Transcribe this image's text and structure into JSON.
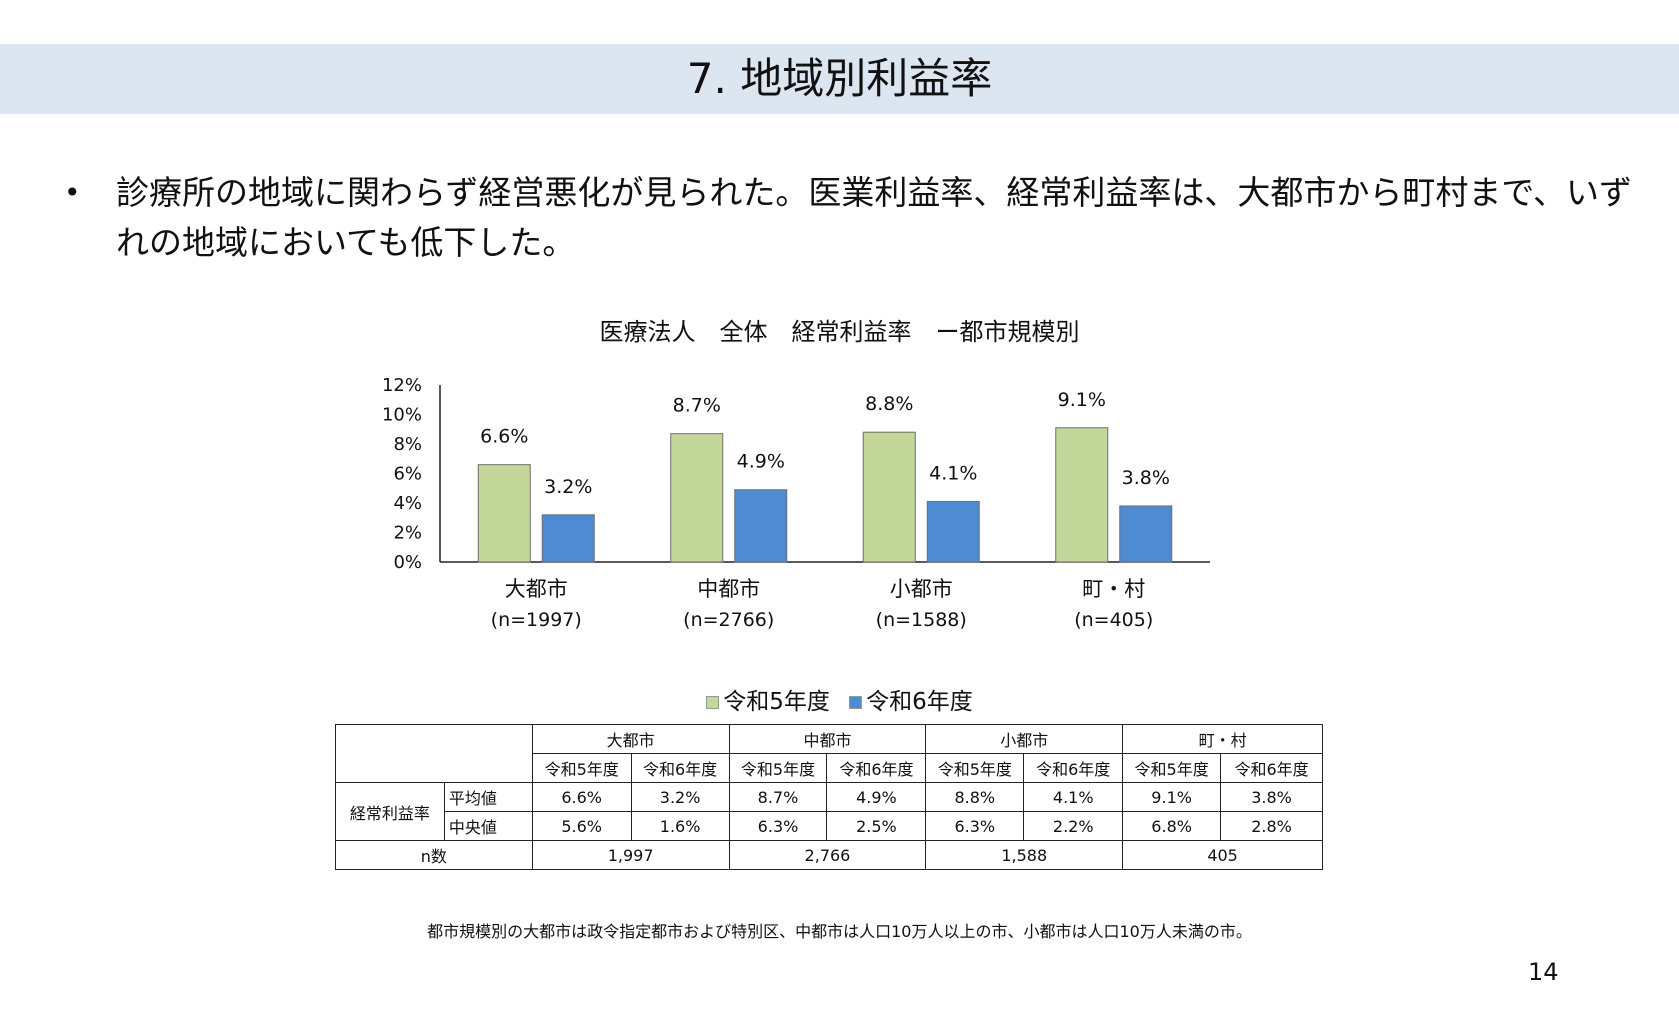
{
  "slide": {
    "title": "7. 地域別利益率",
    "bullet": "診療所の地域に関わらず経営悪化が見られた。医業利益率、経常利益率は、大都市から町村まで、いずれの地域においても低下した。",
    "footnote": "都市規模別の大都市は政令指定都市および特別区、中都市は人口10万人以上の市、小都市は人口10万人未満の市。",
    "page_number": "14"
  },
  "chart_data": {
    "type": "bar",
    "title": "医療法人　全体　経常利益率　ー都市規模別",
    "categories": [
      "大都市",
      "中都市",
      "小都市",
      "町・村"
    ],
    "category_sublabels": [
      "(n=1997)",
      "(n=2766)",
      "(n=1588)",
      "(n=405)"
    ],
    "series": [
      {
        "name": "令和5年度",
        "values": [
          6.6,
          8.7,
          8.8,
          9.1
        ],
        "labels": [
          "6.6%",
          "8.7%",
          "8.8%",
          "9.1%"
        ],
        "color": "#c4d79b"
      },
      {
        "name": "令和6年度",
        "values": [
          3.2,
          4.9,
          4.1,
          3.8
        ],
        "labels": [
          "3.2%",
          "4.9%",
          "4.1%",
          "3.8%"
        ],
        "color": "#4f8bd3"
      }
    ],
    "ylim": [
      0,
      12
    ],
    "yticks": [
      "0%",
      "2%",
      "4%",
      "6%",
      "8%",
      "10%",
      "12%"
    ],
    "legend": "bottom",
    "grid": false
  },
  "table": {
    "regions": [
      "大都市",
      "中都市",
      "小都市",
      "町・村"
    ],
    "years": [
      "令和5年度",
      "令和6年度"
    ],
    "metric": "経常利益率",
    "rows": [
      {
        "label": "平均値",
        "values": [
          "6.6%",
          "3.2%",
          "8.7%",
          "4.9%",
          "8.8%",
          "4.1%",
          "9.1%",
          "3.8%"
        ]
      },
      {
        "label": "中央値",
        "values": [
          "5.6%",
          "1.6%",
          "6.3%",
          "2.5%",
          "6.3%",
          "2.2%",
          "6.8%",
          "2.8%"
        ]
      }
    ],
    "n_label": "n数",
    "n_values": [
      "1,997",
      "2,766",
      "1,588",
      "405"
    ]
  }
}
